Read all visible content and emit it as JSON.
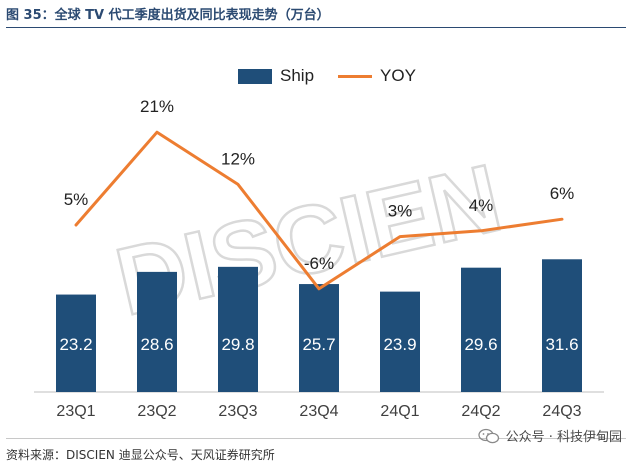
{
  "title": "图 35：全球 TV 代工季度出货及同比表现走势（万台）",
  "source": "资料来源：DISCIEN 迪显公众号、天风证券研究所",
  "brand": "公众号 · 科技伊甸园",
  "watermark": "DISCIEN",
  "colors": {
    "bar": "#1f4e79",
    "line": "#ed7d31",
    "title": "#2b4a72"
  },
  "chart_data": {
    "type": "bar",
    "categories": [
      "23Q1",
      "23Q2",
      "23Q3",
      "23Q4",
      "24Q1",
      "24Q2",
      "24Q3"
    ],
    "series": [
      {
        "name": "Ship",
        "kind": "bar",
        "values": [
          23.2,
          28.6,
          29.8,
          25.7,
          23.9,
          29.6,
          31.6
        ]
      },
      {
        "name": "YOY",
        "kind": "line",
        "values": [
          5,
          21,
          12,
          -6,
          3,
          4,
          6
        ],
        "labels": [
          "5%",
          "21%",
          "12%",
          "-6%",
          "3%",
          "4%",
          "6%"
        ]
      }
    ],
    "legend": "top-center",
    "grid": false
  }
}
